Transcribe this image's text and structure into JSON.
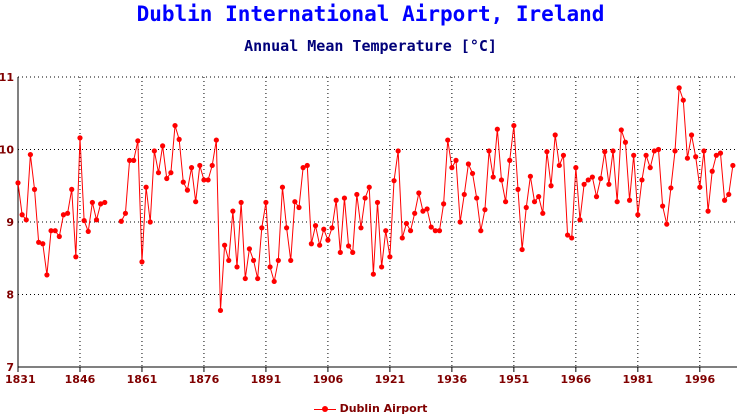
{
  "chart_data": {
    "type": "line",
    "title": "Dublin International Airport, Ireland",
    "subtitle": "Annual Mean Temperature [°C]",
    "xlabel": "",
    "ylabel": "",
    "xlim": [
      1831,
      2005
    ],
    "ylim": [
      7,
      11
    ],
    "x_ticks": [
      "1831",
      "1846",
      "1861",
      "1876",
      "1891",
      "1906",
      "1921",
      "1936",
      "1951",
      "1966",
      "1981",
      "1996"
    ],
    "y_ticks": [
      "7",
      "8",
      "9",
      "10",
      "11"
    ],
    "grid": true,
    "legend_position": "bottom",
    "colors": {
      "series": "#ff0000",
      "title": "#0000ff",
      "subtitle": "#00007a",
      "ticks": "#800000"
    },
    "series": [
      {
        "name": "Dublin Airport",
        "start_year": 1831,
        "values": [
          9.54,
          9.1,
          9.03,
          9.93,
          9.45,
          8.72,
          8.7,
          8.27,
          8.88,
          8.88,
          8.8,
          9.1,
          9.12,
          9.45,
          8.52,
          10.16,
          9.02,
          8.87,
          9.27,
          9.03,
          9.25,
          9.27,
          null,
          null,
          null,
          9.01,
          9.12,
          9.85,
          9.85,
          10.12,
          8.45,
          9.48,
          9.0,
          9.98,
          9.68,
          10.05,
          9.6,
          9.68,
          10.33,
          10.14,
          9.55,
          9.44,
          9.75,
          9.28,
          9.78,
          9.58,
          9.58,
          9.78,
          10.13,
          7.78,
          8.68,
          8.47,
          9.15,
          8.38,
          9.27,
          8.22,
          8.63,
          8.47,
          8.22,
          8.92,
          9.27,
          8.38,
          8.18,
          8.47,
          9.48,
          8.92,
          8.47,
          9.28,
          9.2,
          9.75,
          9.78,
          8.7,
          8.95,
          8.68,
          8.9,
          8.75,
          8.92,
          9.3,
          8.58,
          9.33,
          8.67,
          8.58,
          9.38,
          8.92,
          9.33,
          9.48,
          8.28,
          9.27,
          8.38,
          8.88,
          8.52,
          9.57,
          9.98,
          8.78,
          8.98,
          8.88,
          9.12,
          9.4,
          9.15,
          9.18,
          8.93,
          8.88,
          8.88,
          9.25,
          10.13,
          9.75,
          9.85,
          9.0,
          9.38,
          9.8,
          9.67,
          9.33,
          8.88,
          9.17,
          9.98,
          9.62,
          10.28,
          9.58,
          9.28,
          9.85,
          10.33,
          9.45,
          8.62,
          9.2,
          9.63,
          9.28,
          9.35,
          9.12,
          9.97,
          9.5,
          10.2,
          9.78,
          9.92,
          8.82,
          8.78,
          9.75,
          9.03,
          9.52,
          9.58,
          9.62,
          9.35,
          9.6,
          9.97,
          9.52,
          9.98,
          9.28,
          10.27,
          10.1,
          9.3,
          9.92,
          9.1,
          9.58,
          9.92,
          9.75,
          9.98,
          10.0,
          9.22,
          8.97,
          9.47,
          9.98,
          10.85,
          10.68,
          9.88,
          10.2,
          9.9,
          9.48,
          9.98,
          9.15,
          9.7,
          9.92,
          9.95,
          9.3,
          9.38,
          9.78
        ]
      }
    ]
  },
  "legend": {
    "label": "Dublin Airport"
  }
}
